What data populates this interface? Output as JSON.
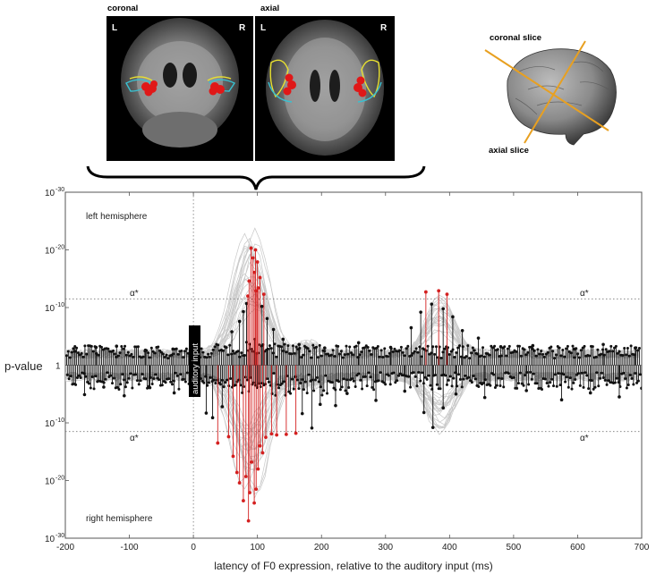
{
  "insets": {
    "coronal_label": "coronal",
    "axial_label": "axial",
    "left_marker": "L",
    "right_marker": "R",
    "brain_3d": {
      "coronal_slice_label": "coronal slice",
      "axial_slice_label": "axial slice"
    }
  },
  "chart_data": {
    "type": "scatter",
    "xlabel": "latency of F0 expression, relative to the auditory input (ms)",
    "ylabel": "p-value",
    "xlim": [
      -200,
      700
    ],
    "x_ticks": [
      -200,
      -100,
      0,
      100,
      200,
      300,
      400,
      500,
      600,
      700
    ],
    "y_ticks": [
      {
        "base": "10",
        "exp": "-30",
        "log10": 30
      },
      {
        "base": "10",
        "exp": "-20",
        "log10": 20
      },
      {
        "base": "10",
        "exp": "-10",
        "log10": 10
      },
      {
        "base": "1",
        "exp": "",
        "log10": 0
      },
      {
        "base": "10",
        "exp": "-10",
        "log10": -10
      },
      {
        "base": "10",
        "exp": "-20",
        "log10": -20
      },
      {
        "base": "10",
        "exp": "-30",
        "log10": -30
      }
    ],
    "top_label": "left hemisphere",
    "bottom_label": "right hemisphere",
    "alpha_label": "α*",
    "alpha_log10": 11.5,
    "onset_label": "auditory input",
    "onset_x": 0,
    "colors": {
      "significant": "#d42020",
      "nonsignificant": "#111111",
      "background_traces": "#c8c8c8"
    },
    "significant_left": [
      [
        90,
        20.3
      ],
      [
        93,
        18.6
      ],
      [
        97,
        20.0
      ],
      [
        100,
        17.9
      ],
      [
        104,
        15.2
      ],
      [
        87,
        14.6
      ],
      [
        95,
        16.1
      ],
      [
        101,
        13.4
      ],
      [
        110,
        12.3
      ],
      [
        85,
        12.0
      ],
      [
        98,
        12.9
      ],
      [
        363,
        12.7
      ],
      [
        383,
        12.9
      ],
      [
        396,
        12.3
      ]
    ],
    "significant_right": [
      [
        38,
        -13.5
      ],
      [
        55,
        -12.4
      ],
      [
        62,
        -15.8
      ],
      [
        68,
        -18.6
      ],
      [
        72,
        -20.4
      ],
      [
        78,
        -23.5
      ],
      [
        82,
        -19.3
      ],
      [
        86,
        -27.0
      ],
      [
        88,
        -22.1
      ],
      [
        91,
        -16.8
      ],
      [
        95,
        -23.9
      ],
      [
        98,
        -21.5
      ],
      [
        101,
        -18.0
      ],
      [
        104,
        -14.0
      ],
      [
        108,
        -15.2
      ],
      [
        113,
        -12.5
      ],
      [
        122,
        -11.9
      ],
      [
        130,
        -12.1
      ],
      [
        145,
        -12.0
      ],
      [
        160,
        -11.8
      ]
    ],
    "nonsignificant_peaks_left": [
      [
        -185,
        2.4
      ],
      [
        -152,
        3.1
      ],
      [
        -120,
        3.3
      ],
      [
        -75,
        2.6
      ],
      [
        -32,
        2.8
      ],
      [
        60,
        5.8
      ],
      [
        72,
        7.6
      ],
      [
        78,
        9.3
      ],
      [
        83,
        10.7
      ],
      [
        107,
        10.2
      ],
      [
        115,
        8.1
      ],
      [
        125,
        6.2
      ],
      [
        140,
        4.5
      ],
      [
        165,
        3.6
      ],
      [
        205,
        3.0
      ],
      [
        258,
        3.9
      ],
      [
        308,
        3.1
      ],
      [
        340,
        6.5
      ],
      [
        355,
        9.2
      ],
      [
        372,
        10.6
      ],
      [
        390,
        9.8
      ],
      [
        405,
        8.4
      ],
      [
        420,
        6.0
      ],
      [
        445,
        4.7
      ],
      [
        480,
        3.2
      ],
      [
        530,
        3.4
      ],
      [
        595,
        2.8
      ],
      [
        640,
        3.6
      ],
      [
        690,
        3.0
      ]
    ],
    "nonsignificant_peaks_right": [
      [
        -170,
        -5.1
      ],
      [
        -140,
        -3.8
      ],
      [
        -108,
        -5.3
      ],
      [
        -68,
        -3.9
      ],
      [
        -30,
        -4.8
      ],
      [
        20,
        -8.3
      ],
      [
        30,
        -9.1
      ],
      [
        45,
        -7.2
      ],
      [
        170,
        -8.4
      ],
      [
        185,
        -10.9
      ],
      [
        198,
        -6.8
      ],
      [
        222,
        -7.0
      ],
      [
        240,
        -4.9
      ],
      [
        285,
        -6.1
      ],
      [
        330,
        -4.5
      ],
      [
        360,
        -8.2
      ],
      [
        374,
        -10.8
      ],
      [
        390,
        -7.4
      ],
      [
        410,
        -5.0
      ],
      [
        455,
        -5.6
      ],
      [
        520,
        -4.4
      ],
      [
        575,
        -6.0
      ],
      [
        620,
        -4.8
      ],
      [
        665,
        -5.5
      ],
      [
        700,
        -4.0
      ]
    ]
  }
}
